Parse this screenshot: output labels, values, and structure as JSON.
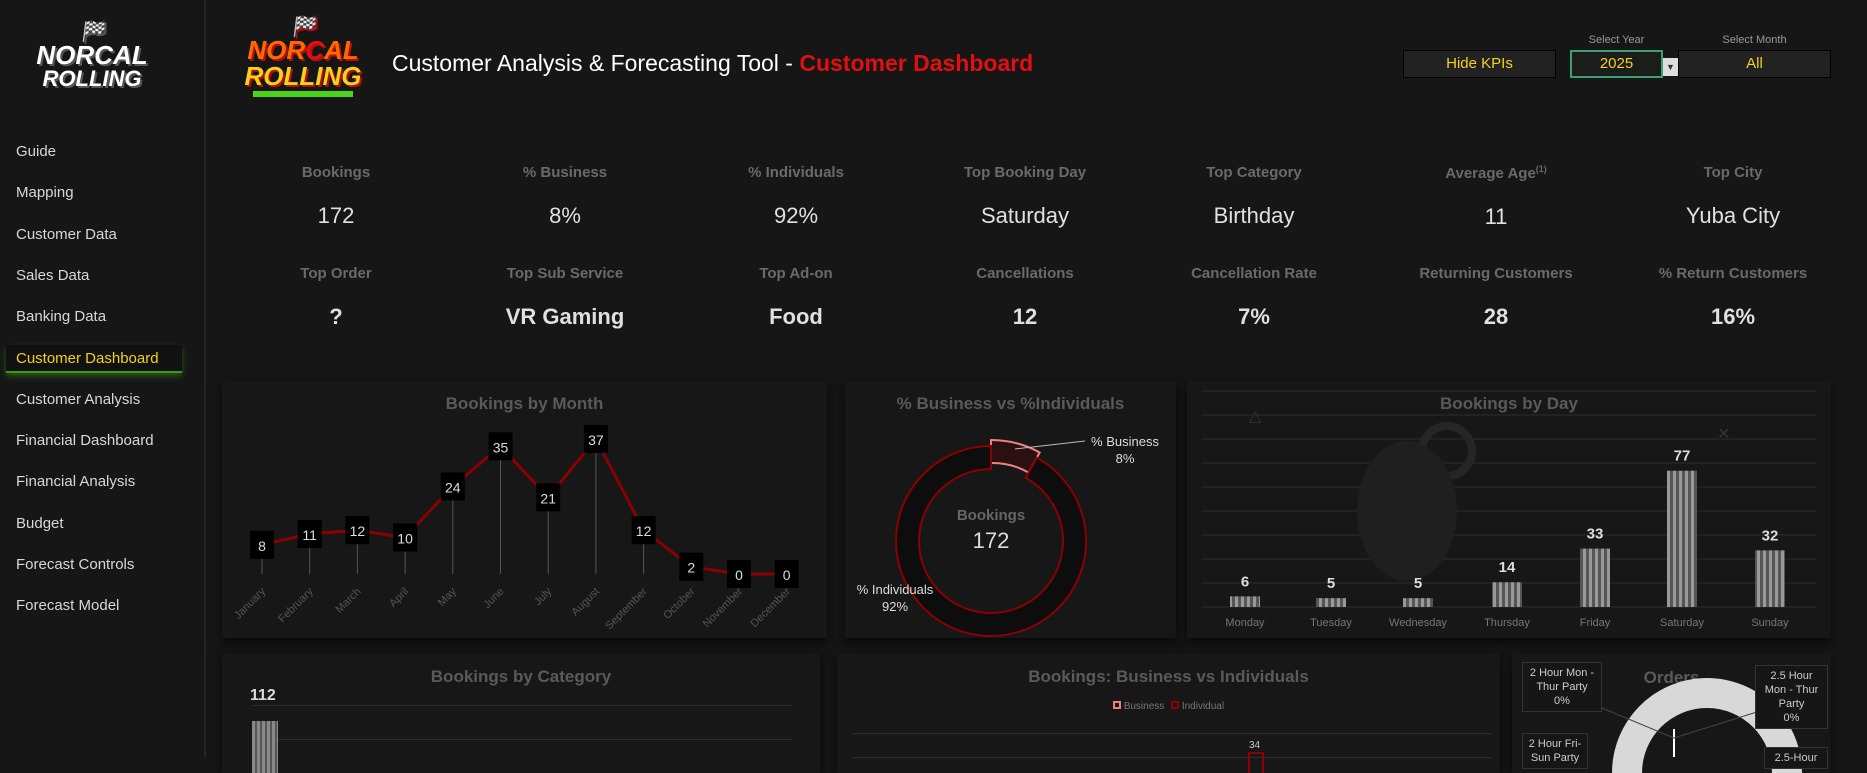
{
  "sidebar": {
    "logo_text": "NorCal Rolling",
    "items": [
      {
        "label": "Guide"
      },
      {
        "label": "Mapping"
      },
      {
        "label": "Customer Data"
      },
      {
        "label": "Sales Data"
      },
      {
        "label": "Banking Data"
      },
      {
        "label": "Customer Dashboard",
        "active": true
      },
      {
        "label": "Customer Analysis"
      },
      {
        "label": "Financial Dashboard"
      },
      {
        "label": "Financial Analysis"
      },
      {
        "label": "Budget"
      },
      {
        "label": "Forecast Controls"
      },
      {
        "label": "Forecast Model"
      }
    ]
  },
  "header": {
    "logo_text": "NorCal Rolling",
    "title": "Customer Analysis & Forecasting Tool - ",
    "title_highlight": "Customer Dashboard",
    "hide_kpis": "Hide KPIs",
    "year_label": "Select Year",
    "year_value": "2025",
    "month_label": "Select Month",
    "month_value": "All"
  },
  "kpis": [
    {
      "label": "Bookings",
      "value": "172"
    },
    {
      "label": "% Business",
      "value": "8%"
    },
    {
      "label": "% Individuals",
      "value": "92%"
    },
    {
      "label": "Top Booking Day",
      "value": "Saturday"
    },
    {
      "label": "Top Category",
      "value": "Birthday"
    },
    {
      "label": "Average Age",
      "sup": "(1)",
      "value": "11"
    },
    {
      "label": "Top City",
      "value": "Yuba City"
    },
    {
      "label": "Top Order",
      "value": "?"
    },
    {
      "label": "Top Sub Service",
      "value": "VR Gaming"
    },
    {
      "label": "Top Ad-on",
      "value": "Food"
    },
    {
      "label": "Cancellations",
      "value": "12"
    },
    {
      "label": "Cancellation Rate",
      "value": "7%"
    },
    {
      "label": "Returning Customers",
      "value": "28"
    },
    {
      "label": "% Return Customers",
      "value": "16%"
    }
  ],
  "chart_data": [
    {
      "type": "line",
      "title": "Bookings by Month",
      "categories": [
        "January",
        "February",
        "March",
        "April",
        "May",
        "June",
        "July",
        "August",
        "September",
        "October",
        "November",
        "December"
      ],
      "values": [
        8,
        11,
        12,
        10,
        24,
        35,
        21,
        37,
        12,
        2,
        0,
        0
      ],
      "color": "#8b0000"
    },
    {
      "type": "pie",
      "title": "% Business vs %Individuals",
      "center_label": "Bookings",
      "center_value": "172",
      "slices": [
        {
          "name": "% Business",
          "value": 8,
          "label": "8%",
          "color": "#f08080"
        },
        {
          "name": "% Individuals",
          "value": 92,
          "label": "92%",
          "color": "#8b0000"
        }
      ]
    },
    {
      "type": "bar",
      "title": "Bookings by Day",
      "categories": [
        "Monday",
        "Tuesday",
        "Wednesday",
        "Thursday",
        "Friday",
        "Saturday",
        "Sunday"
      ],
      "values": [
        6,
        5,
        5,
        14,
        33,
        77,
        32
      ]
    },
    {
      "type": "bar",
      "title": "Bookings by Category",
      "visible_values": [
        "112"
      ]
    },
    {
      "type": "bar",
      "title": "Bookings: Business vs Individuals",
      "legend": [
        "Business",
        "Individual"
      ],
      "legend_colors": [
        "#f08080",
        "#8b0000"
      ],
      "visible_values": [
        "34"
      ]
    },
    {
      "type": "pie",
      "title": "Orders",
      "labels": [
        {
          "name": "2 Hour Mon - Thur Party",
          "value": "0%"
        },
        {
          "name": "2.5 Hour Mon - Thur Party",
          "value": "0%"
        },
        {
          "name": "2 Hour Fri-Sun Party",
          "value": ""
        },
        {
          "name": "2.5-Hour",
          "value": ""
        }
      ]
    }
  ]
}
